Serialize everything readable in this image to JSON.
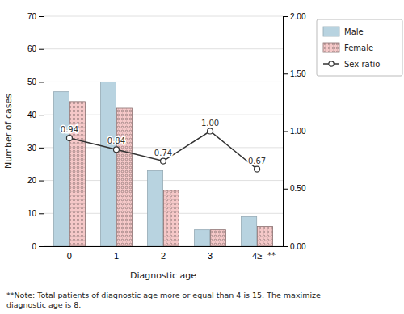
{
  "chart_data": {
    "type": "bar",
    "categories": [
      "0",
      "1",
      "2",
      "3",
      "4≥"
    ],
    "series": [
      {
        "name": "Male",
        "type": "bar",
        "color": "#b8d3e0",
        "values": [
          47,
          50,
          23,
          5,
          9
        ]
      },
      {
        "name": "Female",
        "type": "bar",
        "color": "#f5c8c8",
        "values": [
          44,
          42,
          17,
          5,
          6
        ]
      },
      {
        "name": "Sex ratio",
        "type": "line",
        "axis": "y2",
        "color": "#333333",
        "marker": "circle",
        "line_style": "solid",
        "data_labels": true,
        "values": [
          0.94,
          0.84,
          0.74,
          1.0,
          0.67
        ],
        "value_labels": [
          "0.94",
          "0.84",
          "0.74",
          "1.00",
          "0.67"
        ]
      }
    ],
    "xlabel": "Diagnostic age",
    "ylabel": "Number of cases",
    "ylim": [
      0,
      70
    ],
    "yticks": [
      0,
      10,
      20,
      30,
      40,
      50,
      60,
      70
    ],
    "y2lim": [
      0.0,
      2.0
    ],
    "y2ticks": [
      {
        "value": 0,
        "label": "0.00"
      },
      {
        "value": 0.5,
        "label": "0.50"
      },
      {
        "value": 1,
        "label": "1.00"
      },
      {
        "value": 1.5,
        "label": "1.50"
      },
      {
        "value": 2,
        "label": "2.00"
      }
    ],
    "grid": true,
    "legend": "right",
    "annotations": [
      "**",
      "**Note: Total patients of diagnostic age more or equal than 4 is 15. The maximize\ndiagnostic age is 8."
    ]
  }
}
